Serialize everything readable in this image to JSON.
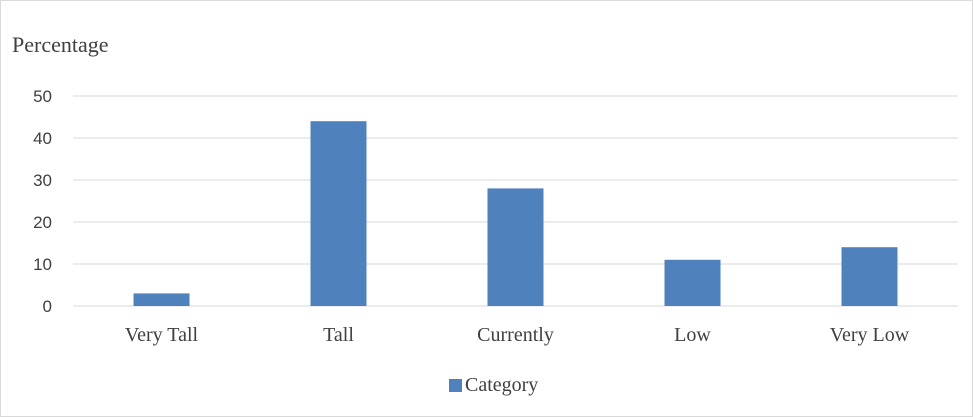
{
  "chart_data": {
    "type": "bar",
    "title": "Percentage",
    "categories": [
      "Very Tall",
      "Tall",
      "Currently",
      "Low",
      "Very Low"
    ],
    "series": [
      {
        "name": "Category",
        "values": [
          3,
          44,
          28,
          11,
          14
        ],
        "color": "#4f81bd"
      }
    ],
    "ylim": [
      0,
      50
    ],
    "yticks": [
      0,
      10,
      20,
      30,
      40,
      50
    ],
    "xlabel": "",
    "ylabel": "",
    "grid": true,
    "gridColor": "#d9d9d9",
    "legend": "bottom"
  }
}
